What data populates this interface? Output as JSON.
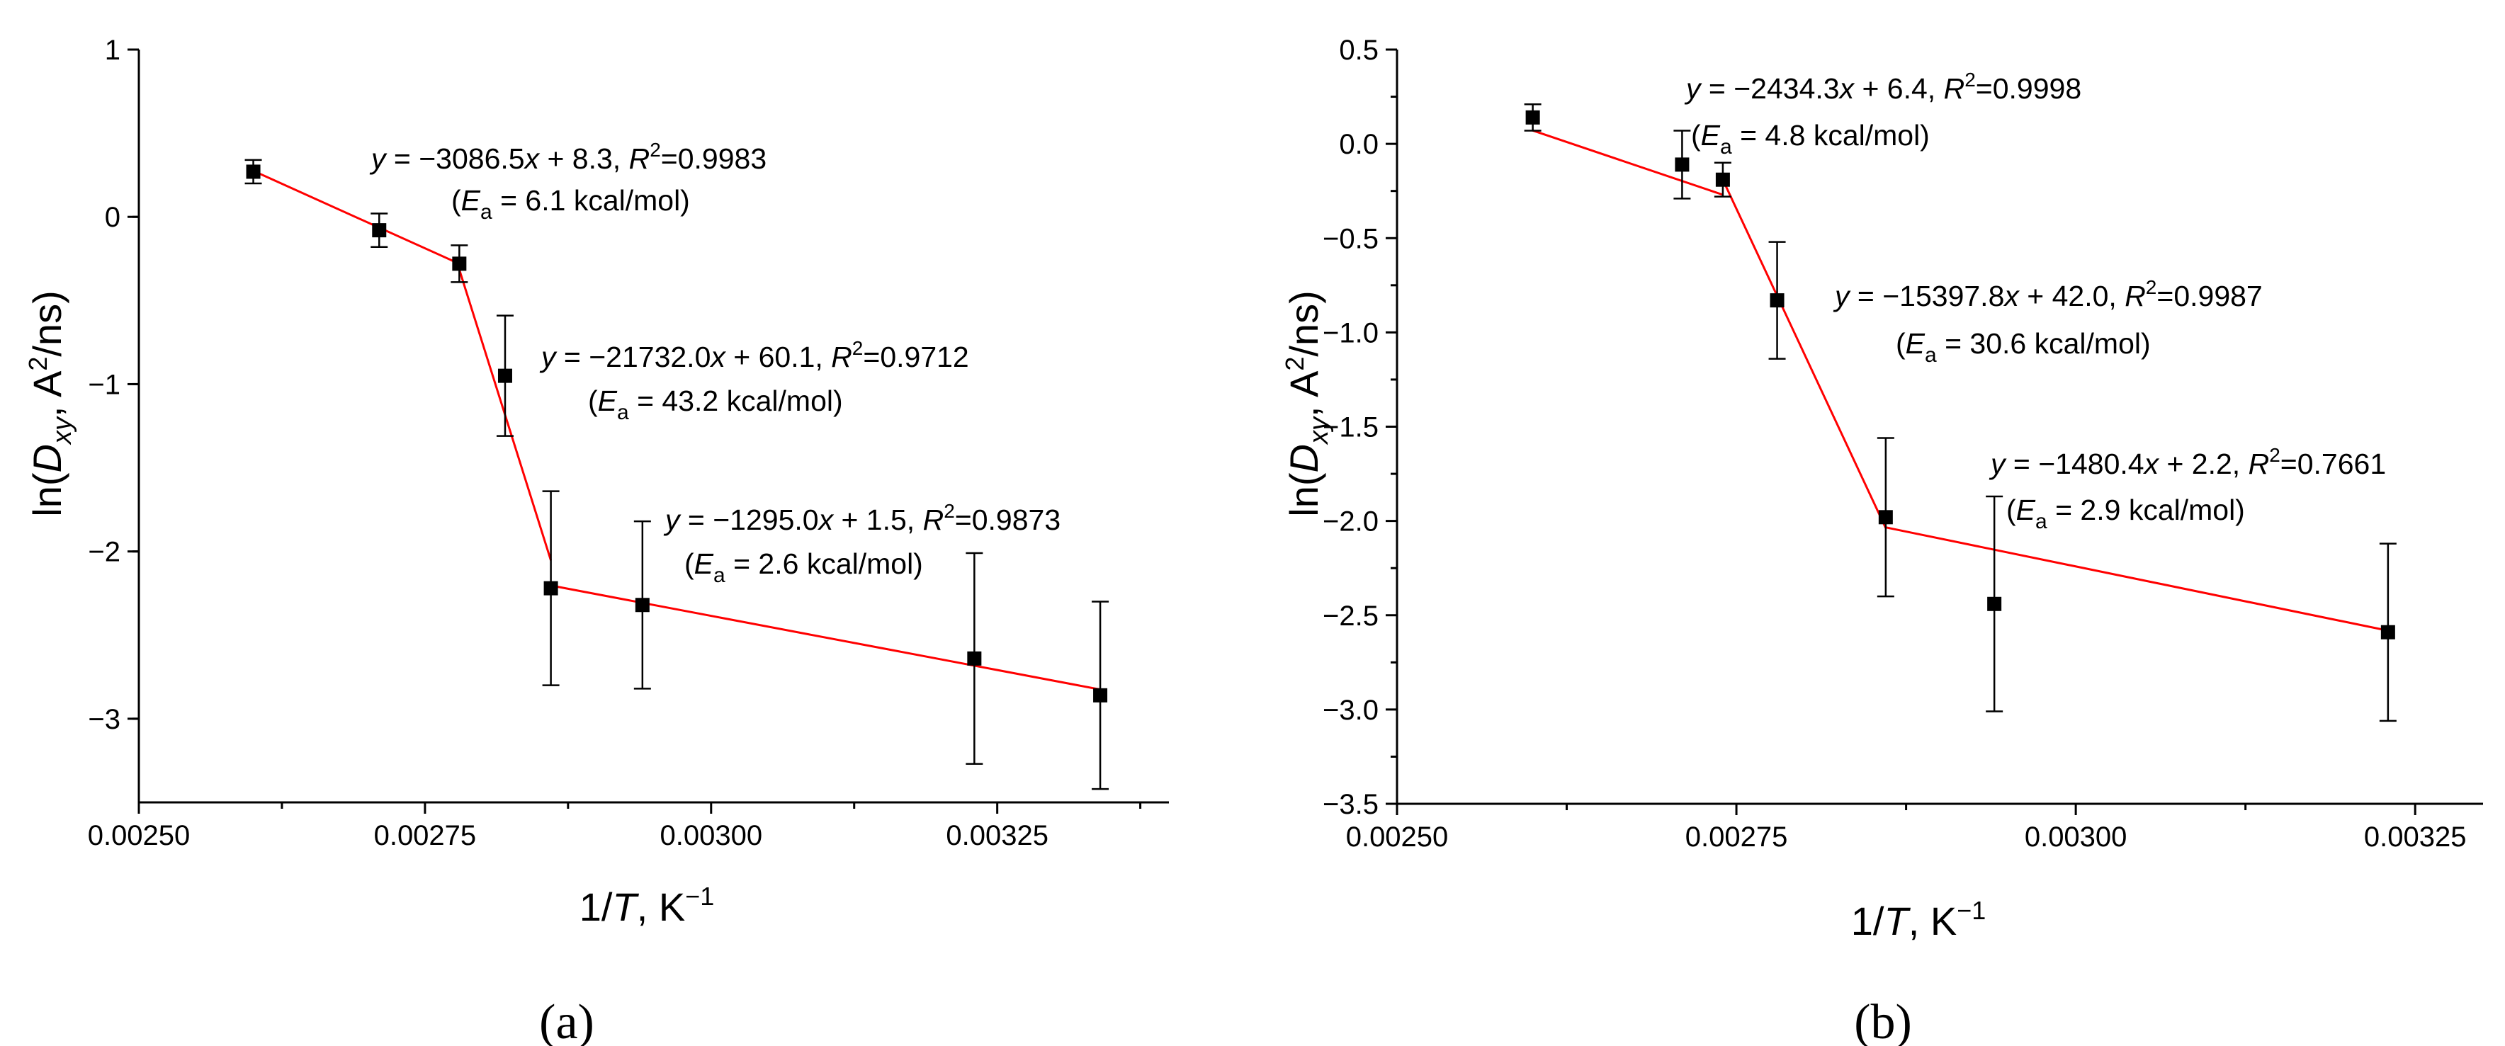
{
  "chart_data": [
    {
      "type": "scatter",
      "panel_label": "(a)",
      "xlabel": "1/T, K−1",
      "ylabel": "ln(D_xy, A²/ns)",
      "xlim": [
        0.0025,
        0.0034
      ],
      "ylim": [
        -3.5,
        1
      ],
      "x_ticks": [
        0.0025,
        0.00275,
        0.003,
        0.00325
      ],
      "x_tick_labels": [
        "0.00250",
        "0.00275",
        "0.00300",
        "0.00325"
      ],
      "y_ticks": [
        1,
        0,
        -1,
        -2,
        -3
      ],
      "y_tick_labels": [
        "1",
        "0",
        "−1",
        "−2",
        "−3"
      ],
      "series": [
        {
          "name": "ln(Dxy)",
          "x": [
            0.0026,
            0.00271,
            0.00278,
            0.00282,
            0.00286,
            0.00294,
            0.00323,
            0.00334
          ],
          "y": [
            0.27,
            -0.08,
            -0.28,
            -0.95,
            -2.22,
            -2.32,
            -2.64,
            -2.86
          ],
          "yerr": [
            0.07,
            0.1,
            0.11,
            0.36,
            0.58,
            0.5,
            0.63,
            0.56
          ]
        }
      ],
      "fits": [
        {
          "x_range": [
            0.0026,
            0.00278
          ],
          "slope": -3086.5,
          "intercept": 8.3,
          "equation": "y = −3086.5x + 8.3,",
          "r2": "=0.9983",
          "ea": "= 6.1 kcal/mol)"
        },
        {
          "x_range": [
            0.00278,
            0.00286
          ],
          "slope": -21732.0,
          "intercept": 60.1,
          "equation": "y = −21732.0x + 60.1,",
          "r2": "=0.9712",
          "ea": "= 43.2 kcal/mol)"
        },
        {
          "x_range": [
            0.00286,
            0.00334
          ],
          "slope": -1295.0,
          "intercept": 1.5,
          "equation": "y = −1295.0x + 1.5,",
          "r2": "=0.9873",
          "ea": "= 2.6 kcal/mol)"
        }
      ]
    },
    {
      "type": "scatter",
      "panel_label": "(b)",
      "xlabel": "1/T, K−1",
      "ylabel": "ln(D_xy, A²/ns)",
      "xlim": [
        0.0025,
        0.0033
      ],
      "ylim": [
        -3.5,
        0.5
      ],
      "x_ticks": [
        0.0025,
        0.00275,
        0.003,
        0.00325
      ],
      "x_tick_labels": [
        "0.00250",
        "0.00275",
        "0.00300",
        "0.00325"
      ],
      "y_ticks": [
        0.5,
        0,
        -0.5,
        -1,
        -1.5,
        -2,
        -2.5,
        -3,
        -3.5
      ],
      "y_tick_labels": [
        "0.5",
        "0.0",
        "−0.5",
        "−1.0",
        "−1.5",
        "−2.0",
        "−2.5",
        "−3.0",
        "−3.5"
      ],
      "series": [
        {
          "name": "ln(Dxy)",
          "x": [
            0.0026,
            0.00271,
            0.00274,
            0.00278,
            0.00286,
            0.00294,
            0.00323
          ],
          "y": [
            0.14,
            -0.11,
            -0.19,
            -0.83,
            -1.98,
            -2.44,
            -2.59
          ],
          "yerr": [
            0.07,
            0.18,
            0.09,
            0.31,
            0.42,
            0.57,
            0.47
          ]
        }
      ],
      "fits": [
        {
          "x_range": [
            0.0026,
            0.00274
          ],
          "slope": -2434.3,
          "intercept": 6.4,
          "equation": "y = −2434.3x + 6.4,",
          "r2": "=0.9998",
          "ea": "= 4.8 kcal/mol)"
        },
        {
          "x_range": [
            0.00274,
            0.00286
          ],
          "slope": -15397.8,
          "intercept": 42.0,
          "equation": "y = −15397.8x + 42.0,",
          "r2": "=0.9987",
          "ea": "= 30.6 kcal/mol)"
        },
        {
          "x_range": [
            0.00286,
            0.00323
          ],
          "slope": -1480.4,
          "intercept": 2.2,
          "equation": "y = −1480.4x + 2.2,",
          "r2": "=0.7661",
          "ea": "= 2.9 kcal/mol)"
        }
      ]
    }
  ],
  "colors": {
    "fit_line": "#ff0000",
    "markers": "#000000",
    "axes": "#000000"
  }
}
